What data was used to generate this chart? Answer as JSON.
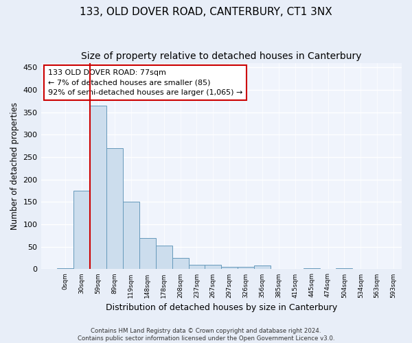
{
  "title": "133, OLD DOVER ROAD, CANTERBURY, CT1 3NX",
  "subtitle": "Size of property relative to detached houses in Canterbury",
  "xlabel": "Distribution of detached houses by size in Canterbury",
  "ylabel": "Number of detached properties",
  "bar_values": [
    2,
    175,
    365,
    270,
    150,
    70,
    53,
    25,
    10,
    10,
    5,
    5,
    8,
    0,
    0,
    2,
    0,
    2,
    0,
    0
  ],
  "bin_labels": [
    "0sqm",
    "30sqm",
    "59sqm",
    "89sqm",
    "119sqm",
    "148sqm",
    "178sqm",
    "208sqm",
    "237sqm",
    "267sqm",
    "297sqm",
    "326sqm",
    "356sqm",
    "385sqm",
    "415sqm",
    "445sqm",
    "474sqm",
    "504sqm",
    "534sqm",
    "563sqm",
    "593sqm"
  ],
  "bar_color": "#ccdded",
  "bar_edge_color": "#6699bb",
  "vline_color": "#cc0000",
  "annotation_line1": "133 OLD DOVER ROAD: 77sqm",
  "annotation_line2": "← 7% of detached houses are smaller (85)",
  "annotation_line3": "92% of semi-detached houses are larger (1,065) →",
  "annotation_box_color": "white",
  "annotation_box_edge": "#cc0000",
  "ylim": [
    0,
    460
  ],
  "yticks": [
    0,
    50,
    100,
    150,
    200,
    250,
    300,
    350,
    400,
    450
  ],
  "bg_color": "#e8eef8",
  "plot_bg_color": "#f0f4fc",
  "footer_text": "Contains HM Land Registry data © Crown copyright and database right 2024.\nContains public sector information licensed under the Open Government Licence v3.0.",
  "title_fontsize": 11,
  "subtitle_fontsize": 10,
  "xlabel_fontsize": 9,
  "ylabel_fontsize": 8.5,
  "vline_bin_index": 2.5
}
